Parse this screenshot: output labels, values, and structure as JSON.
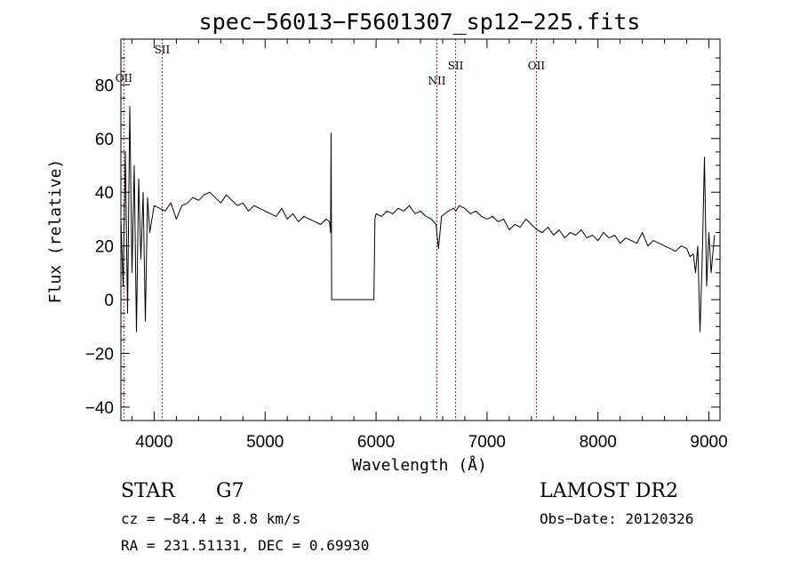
{
  "chart_data": {
    "type": "line",
    "title": "spec−56013−F5601307_sp12−225.fits",
    "xlabel": "Wavelength (Å)",
    "ylabel": "Flux (relative)",
    "xlim": [
      3700,
      9100
    ],
    "ylim": [
      -45,
      97
    ],
    "x_ticks": [
      4000,
      5000,
      6000,
      7000,
      8000,
      9000
    ],
    "y_ticks": [
      -40,
      -20,
      0,
      20,
      40,
      60,
      80
    ],
    "x_tick_labels": [
      "4000",
      "5000",
      "6000",
      "7000",
      "8000",
      "9000"
    ],
    "y_tick_labels": [
      "−40",
      "−20",
      "0",
      "20",
      "40",
      "60",
      "80"
    ],
    "grid": false,
    "series": [
      {
        "color": "#000000",
        "x": [
          3700,
          3720,
          3740,
          3760,
          3780,
          3800,
          3820,
          3840,
          3860,
          3880,
          3900,
          3920,
          3940,
          3960,
          3980,
          4000,
          4050,
          4100,
          4150,
          4200,
          4250,
          4300,
          4350,
          4400,
          4450,
          4500,
          4550,
          4600,
          4650,
          4700,
          4750,
          4800,
          4850,
          4900,
          4950,
          5000,
          5050,
          5100,
          5150,
          5200,
          5250,
          5300,
          5350,
          5400,
          5450,
          5500,
          5550,
          5580,
          5590,
          5595,
          5600,
          5700,
          5800,
          5900,
          5980,
          5990,
          6000,
          6050,
          6100,
          6150,
          6200,
          6250,
          6300,
          6350,
          6400,
          6450,
          6500,
          6540,
          6563,
          6590,
          6620,
          6650,
          6700,
          6720,
          6750,
          6800,
          6850,
          6900,
          6950,
          7000,
          7050,
          7100,
          7150,
          7200,
          7250,
          7300,
          7350,
          7400,
          7450,
          7500,
          7550,
          7600,
          7650,
          7700,
          7750,
          7800,
          7850,
          7900,
          7950,
          8000,
          8050,
          8100,
          8150,
          8200,
          8250,
          8300,
          8350,
          8400,
          8450,
          8500,
          8550,
          8600,
          8650,
          8700,
          8750,
          8800,
          8830,
          8860,
          8880,
          8900,
          8920,
          8940,
          8960,
          8980,
          9000,
          9020,
          9050
        ],
        "y": [
          30,
          5,
          55,
          -5,
          72,
          10,
          50,
          -12,
          45,
          15,
          40,
          -8,
          38,
          25,
          30,
          35,
          34,
          33,
          36,
          30,
          35,
          36,
          38,
          37,
          39,
          40,
          38,
          36,
          39,
          37,
          35,
          36,
          33,
          35,
          34,
          33,
          32,
          31,
          34,
          30,
          32,
          29,
          31,
          30,
          29,
          28,
          30,
          29,
          25,
          62,
          0,
          0,
          0,
          0,
          0,
          30,
          32,
          31,
          33,
          32,
          34,
          33,
          35,
          32,
          33,
          31,
          30,
          28,
          19,
          31,
          32,
          33,
          34,
          33,
          35,
          34,
          32,
          33,
          31,
          30,
          31,
          29,
          30,
          26,
          28,
          27,
          30,
          28,
          26,
          25,
          27,
          24,
          26,
          23,
          25,
          24,
          26,
          23,
          24,
          22,
          25,
          23,
          24,
          21,
          23,
          22,
          21,
          25,
          20,
          22,
          21,
          20,
          19,
          18,
          20,
          19,
          16,
          17,
          10,
          20,
          -12,
          15,
          53,
          5,
          25,
          10,
          24
        ]
      }
    ],
    "emission_lines": [
      {
        "label": "OII",
        "x": 3727
      },
      {
        "label": "SII",
        "x": 4072
      },
      {
        "label": "NII",
        "x": 6548
      },
      {
        "label": "SII",
        "x": 6717
      },
      {
        "label": "OII",
        "x": 7445
      }
    ],
    "info": {
      "class": "STAR",
      "subclass": "G7",
      "survey": "LAMOST DR2",
      "cz": "cz = −84.4 ± 8.8 km/s",
      "obs_date": "Obs−Date: 20120326",
      "coords": "RA = 231.51131, DEC =    0.69930"
    }
  }
}
